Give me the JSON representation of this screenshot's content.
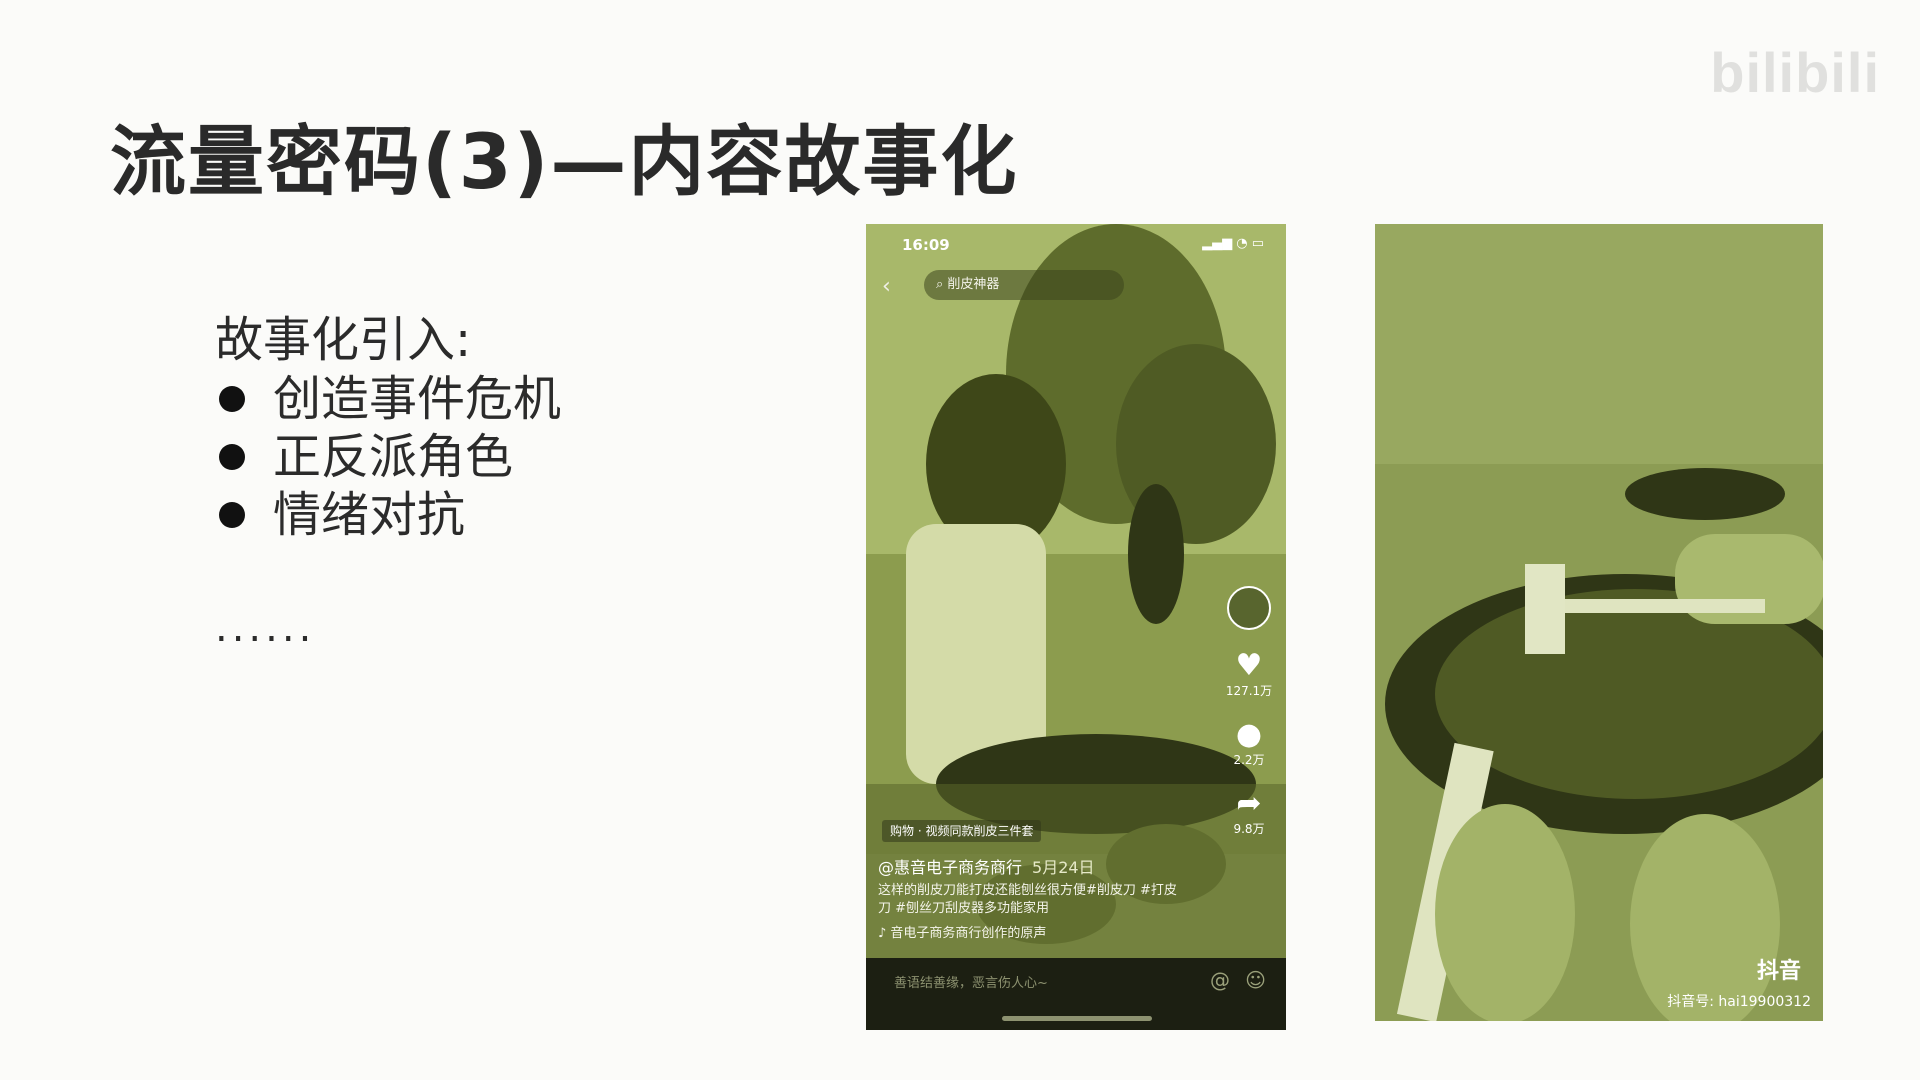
{
  "slide": {
    "title": "流量密码(3)—内容故事化",
    "watermark": "bilibili",
    "intro": "故事化引入:",
    "bullets": [
      "创造事件危机",
      "正反派角色",
      "情绪对抗"
    ],
    "ellipsis": "......"
  },
  "phone": {
    "status_time": "16:09",
    "search_text": "削皮神器",
    "likes": "127.1万",
    "comments": "2.2万",
    "shares": "9.8万",
    "shop_tag": "购物 · 视频同款削皮三件套",
    "author": "@惠音电子商务商行",
    "date": "5月24日",
    "description": "这样的削皮刀能打皮还能刨丝很方便#削皮刀 #打皮刀 #刨丝刀刮皮器多功能家用",
    "music": "♪ 音电子商务商行创作的原声",
    "comment_placeholder": "善语结善缘，恶言伤人心~"
  },
  "photo2": {
    "logo_text": "抖音",
    "douyin_id": "抖音号: hai19900312"
  },
  "icons": {
    "back": "chevron-left-icon",
    "search": "search-icon",
    "heart": "heart-icon",
    "comment": "comment-icon",
    "share": "share-icon",
    "at": "at-icon",
    "emoji": "emoji-icon",
    "music": "music-note-icon"
  },
  "colors": {
    "tint": "#8a9a52",
    "dark_tint": "#2f3616",
    "title": "#2a2a2a"
  }
}
